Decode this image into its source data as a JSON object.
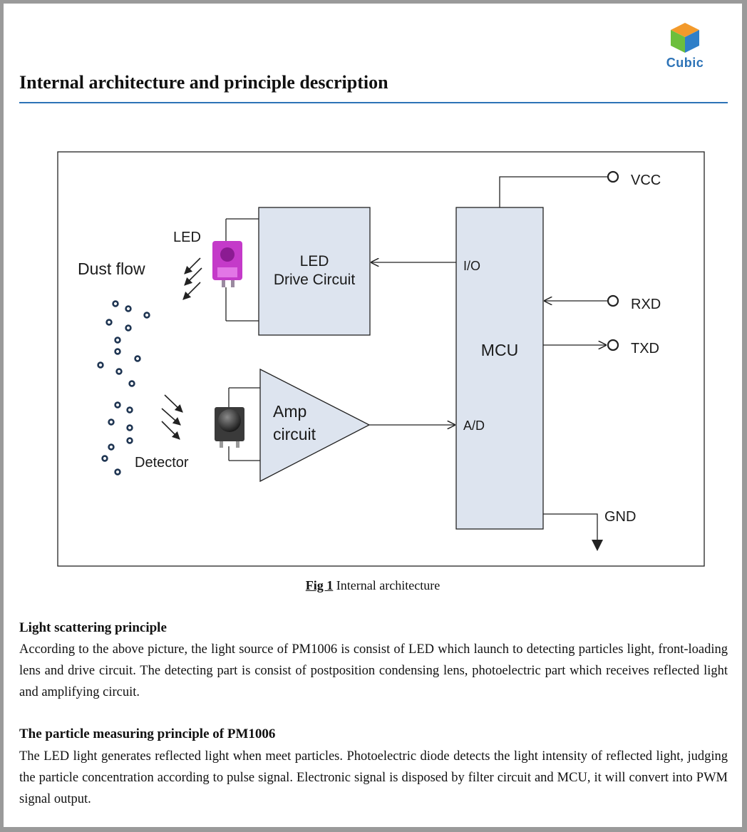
{
  "logo": {
    "text": "Cubic"
  },
  "header": {
    "title": "Internal architecture and principle description"
  },
  "diagram": {
    "dust_flow": "Dust flow",
    "led": "LED",
    "led_drive_line1": "LED",
    "led_drive_line2": "Drive Circuit",
    "detector": "Detector",
    "amp_line1": "Amp",
    "amp_line2": "circuit",
    "mcu": "MCU",
    "io": "I/O",
    "ad": "A/D",
    "vcc": "VCC",
    "rxd": "RXD",
    "txd": "TXD",
    "gnd": "GND",
    "colors": {
      "block_fill": "#dde4ef",
      "led_color": "#c43ac9",
      "accent": "#2d73b7"
    }
  },
  "caption": {
    "fig": "Fig 1",
    "text": " Internal architecture"
  },
  "sections": [
    {
      "heading": "Light scattering principle",
      "body": "According to the above picture, the light source of PM1006 is consist of LED which launch to detecting particles light, front-loading lens and drive circuit. The detecting part is consist of postposition condensing lens, photoelectric part which receives reflected light and amplifying circuit."
    },
    {
      "heading": "The particle measuring principle of PM1006",
      "body": "The LED light generates reflected light when meet particles. Photoelectric diode detects the light intensity of reflected light, judging the particle concentration according to pulse signal. Electronic signal is disposed by filter circuit and MCU, it will convert into PWM signal output."
    }
  ]
}
